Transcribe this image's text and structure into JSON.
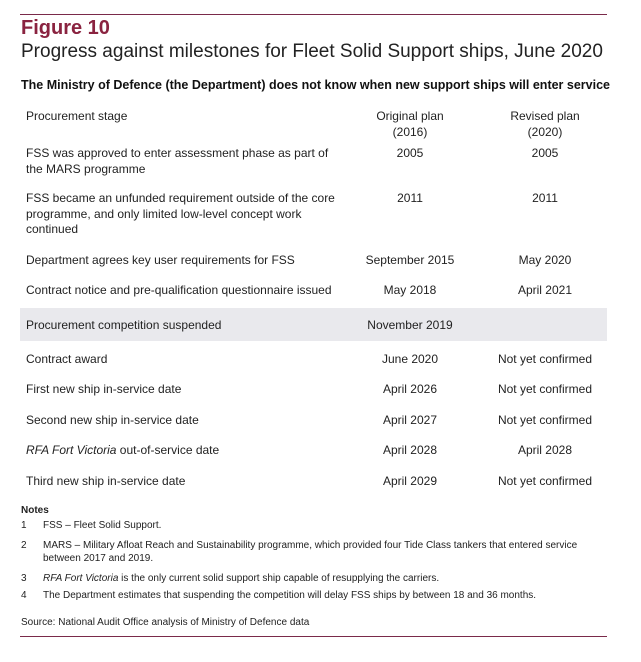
{
  "figure_label": "Figure 10",
  "title": "Progress against milestones for Fleet Solid Support ships, June 2020",
  "subtitle": "The Ministry of Defence (the Department) does not know when new support ships will enter service",
  "table": {
    "headers": [
      "Procurement stage",
      "Original plan (2016)",
      "Revised plan (2020)"
    ],
    "rows": [
      {
        "stage": "FSS was approved to enter assessment phase as part of the MARS programme",
        "original": "2005",
        "revised": "2005"
      },
      {
        "stage": "FSS became an unfunded requirement outside of the core programme, and only limited low-level concept work continued",
        "original": "2011",
        "revised": "2011"
      },
      {
        "stage": "Department agrees key user requirements for FSS",
        "original": "September 2015",
        "revised": "May 2020"
      },
      {
        "stage": "Contract notice and pre-qualification questionnaire issued",
        "original": "May 2018",
        "revised": "April 2021"
      },
      {
        "stage": "Procurement competition suspended",
        "original": "November 2019",
        "revised": ""
      },
      {
        "stage": "Contract award",
        "original": "June 2020",
        "revised": "Not yet confirmed"
      },
      {
        "stage": "First new ship in-service date",
        "original": "April 2026",
        "revised": "Not yet confirmed"
      },
      {
        "stage": "Second new ship in-service date",
        "original": "April 2027",
        "revised": "Not yet confirmed"
      },
      {
        "stage": "RFA Fort Victoria out-of-service date",
        "original": "April 2028",
        "revised": "April 2028"
      },
      {
        "stage": "Third new ship in-service date",
        "original": "April 2029",
        "revised": "Not yet confirmed"
      }
    ]
  },
  "notes": {
    "heading": "Notes",
    "items": [
      {
        "num": "1",
        "text": "FSS – Fleet Solid Support."
      },
      {
        "num": "2",
        "text": "MARS – Military Afloat Reach and Sustainability programme, which provided four Tide Class tankers that entered service between 2017 and 2019."
      },
      {
        "num": "3",
        "italic": "RFA Fort Victoria",
        "text": " is the only current solid support ship capable of resupplying the carriers."
      },
      {
        "num": "4",
        "text": "The Department estimates that suspending the competition will delay FSS ships by between 18 and 36 months."
      }
    ]
  },
  "source": "Source: National Audit Office analysis of Ministry of Defence data",
  "colors": {
    "accent": "#8a2340",
    "highlight_row": "#e9e9ed"
  }
}
